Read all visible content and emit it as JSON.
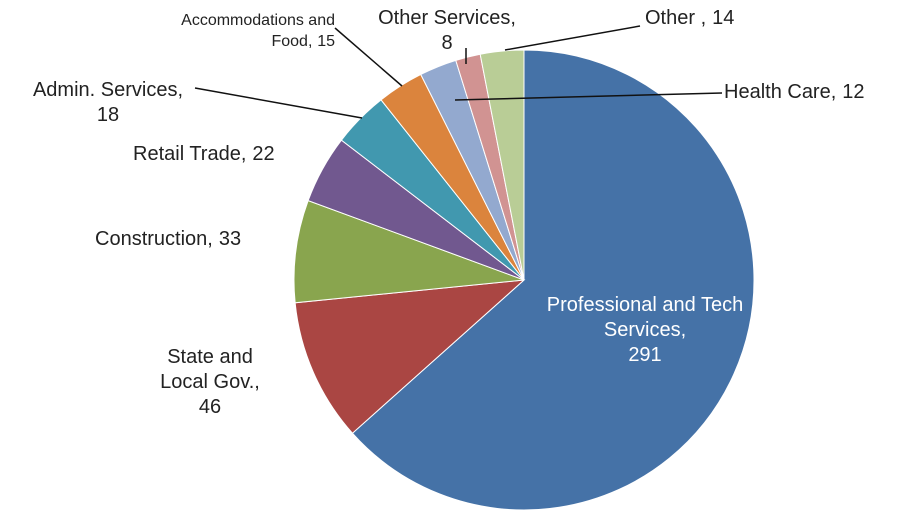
{
  "chart_data": {
    "type": "pie",
    "categories": [
      "Professional and Tech Services,",
      "State and Local Gov.,",
      "Construction,",
      "Retail Trade,",
      "Admin. Services,",
      "Accommodations and Food,",
      "Health Care,",
      "Other Services,",
      "Other ,"
    ],
    "values": [
      291,
      46,
      33,
      22,
      18,
      15,
      12,
      8,
      14
    ],
    "colors": [
      "#4572a7",
      "#aa4643",
      "#89a54e",
      "#71588f",
      "#4198af",
      "#db843d",
      "#93a9cf",
      "#d19392",
      "#b9cd96"
    ]
  }
}
